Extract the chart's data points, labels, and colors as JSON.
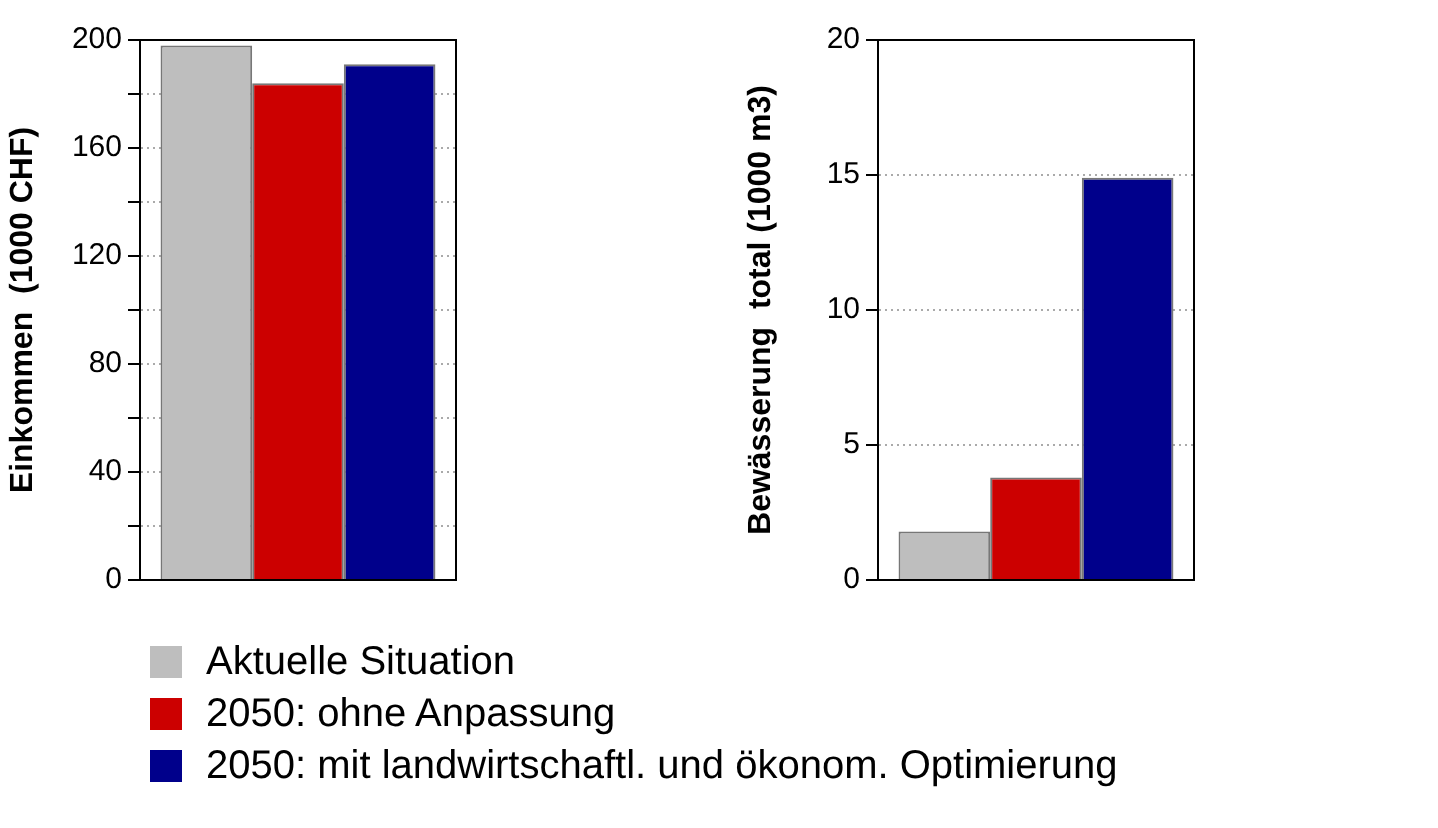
{
  "chart_data": [
    {
      "type": "bar",
      "ylabel": "Einkommen  (1000 CHF)",
      "categories": [
        null
      ],
      "series": [
        {
          "name": "Aktuelle Situation",
          "color": "#bebebe",
          "values": [
            198
          ]
        },
        {
          "name": "2050: ohne Anpassung",
          "color": "#cc0000",
          "values": [
            184
          ]
        },
        {
          "name": "2050: mit landwirtschaftl. und ökonom. Optimierung",
          "color": "#00008b",
          "values": [
            191
          ]
        }
      ],
      "ylim": [
        0,
        200
      ],
      "yticks": [
        0,
        {
          "value": 20,
          "label": null
        },
        40,
        {
          "value": 60,
          "label": null
        },
        80,
        {
          "value": 100,
          "label": null
        },
        120,
        {
          "value": 140,
          "label": null
        },
        160,
        {
          "value": 180,
          "label": null
        },
        200
      ],
      "grid": "y",
      "legend": "bottom",
      "tick_labels": "y"
    },
    {
      "type": "bar",
      "ylabel": "Bewässerung  total (1000 m3)",
      "categories": [
        null
      ],
      "series": [
        {
          "color": "#bebebe",
          "values": [
            1.8
          ]
        },
        {
          "color": "#cc0000",
          "values": [
            3.8
          ]
        },
        {
          "color": "#00008b",
          "values": [
            14.9
          ]
        }
      ],
      "ylim": [
        0,
        20
      ],
      "yticks": [
        0,
        5,
        10,
        15,
        20
      ],
      "grid": "y",
      "tick_labels": "y"
    }
  ]
}
